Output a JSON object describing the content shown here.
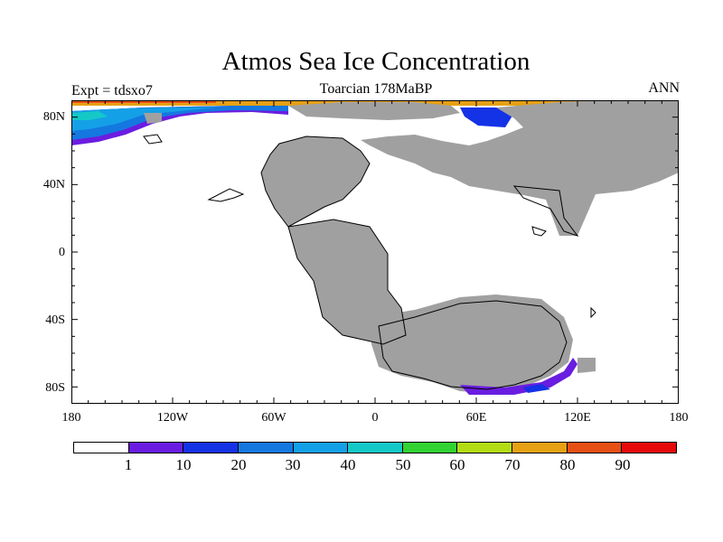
{
  "title": "Atmos Sea Ice Concentration",
  "subtitle": "Toarcian 178MaBP",
  "expt_label": "Expt = tdsxo7",
  "season": "ANN",
  "lat_labels": [
    "80N",
    "40N",
    "0",
    "40S",
    "80S"
  ],
  "lon_labels": [
    "180",
    "120W",
    "60W",
    "0",
    "60E",
    "120E",
    "180"
  ],
  "colorbar": {
    "labels": [
      "1",
      "10",
      "20",
      "30",
      "40",
      "50",
      "60",
      "70",
      "80",
      "90"
    ],
    "colors": [
      "#ffffff",
      "#6a1de0",
      "#1432e6",
      "#1478e0",
      "#14a0e6",
      "#14c8c8",
      "#32d232",
      "#b4dc14",
      "#e6a014",
      "#e65014",
      "#e60a0a"
    ]
  },
  "colors": {
    "land": "#a0a0a0",
    "ocean": "#ffffff"
  }
}
